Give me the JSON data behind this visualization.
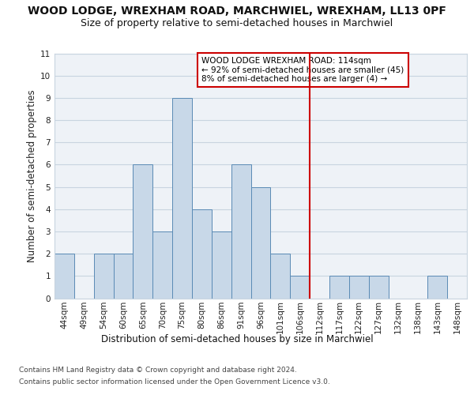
{
  "title": "WOOD LODGE, WREXHAM ROAD, MARCHWIEL, WREXHAM, LL13 0PF",
  "subtitle": "Size of property relative to semi-detached houses in Marchwiel",
  "xlabel": "Distribution of semi-detached houses by size in Marchwiel",
  "ylabel": "Number of semi-detached properties",
  "categories": [
    "44sqm",
    "49sqm",
    "54sqm",
    "60sqm",
    "65sqm",
    "70sqm",
    "75sqm",
    "80sqm",
    "86sqm",
    "91sqm",
    "96sqm",
    "101sqm",
    "106sqm",
    "112sqm",
    "117sqm",
    "122sqm",
    "127sqm",
    "132sqm",
    "138sqm",
    "143sqm",
    "148sqm"
  ],
  "values": [
    2,
    0,
    2,
    2,
    6,
    3,
    9,
    4,
    3,
    6,
    5,
    2,
    1,
    0,
    1,
    1,
    1,
    0,
    0,
    1,
    0
  ],
  "bar_color": "#c8d8e8",
  "bar_edge_color": "#5a8ab5",
  "annotation_text": "WOOD LODGE WREXHAM ROAD: 114sqm\n← 92% of semi-detached houses are smaller (45)\n8% of semi-detached houses are larger (4) →",
  "footnote1": "Contains HM Land Registry data © Crown copyright and database right 2024.",
  "footnote2": "Contains public sector information licensed under the Open Government Licence v3.0.",
  "ylim": [
    0,
    11
  ],
  "yticks": [
    0,
    1,
    2,
    3,
    4,
    5,
    6,
    7,
    8,
    9,
    10,
    11
  ],
  "bg_color": "#eef2f7",
  "grid_color": "#c8d4e0",
  "title_fontsize": 10,
  "subtitle_fontsize": 9,
  "label_fontsize": 8.5,
  "tick_fontsize": 7.5,
  "annot_fontsize": 7.5,
  "footnote_fontsize": 6.5,
  "red_line_x": 12.5
}
